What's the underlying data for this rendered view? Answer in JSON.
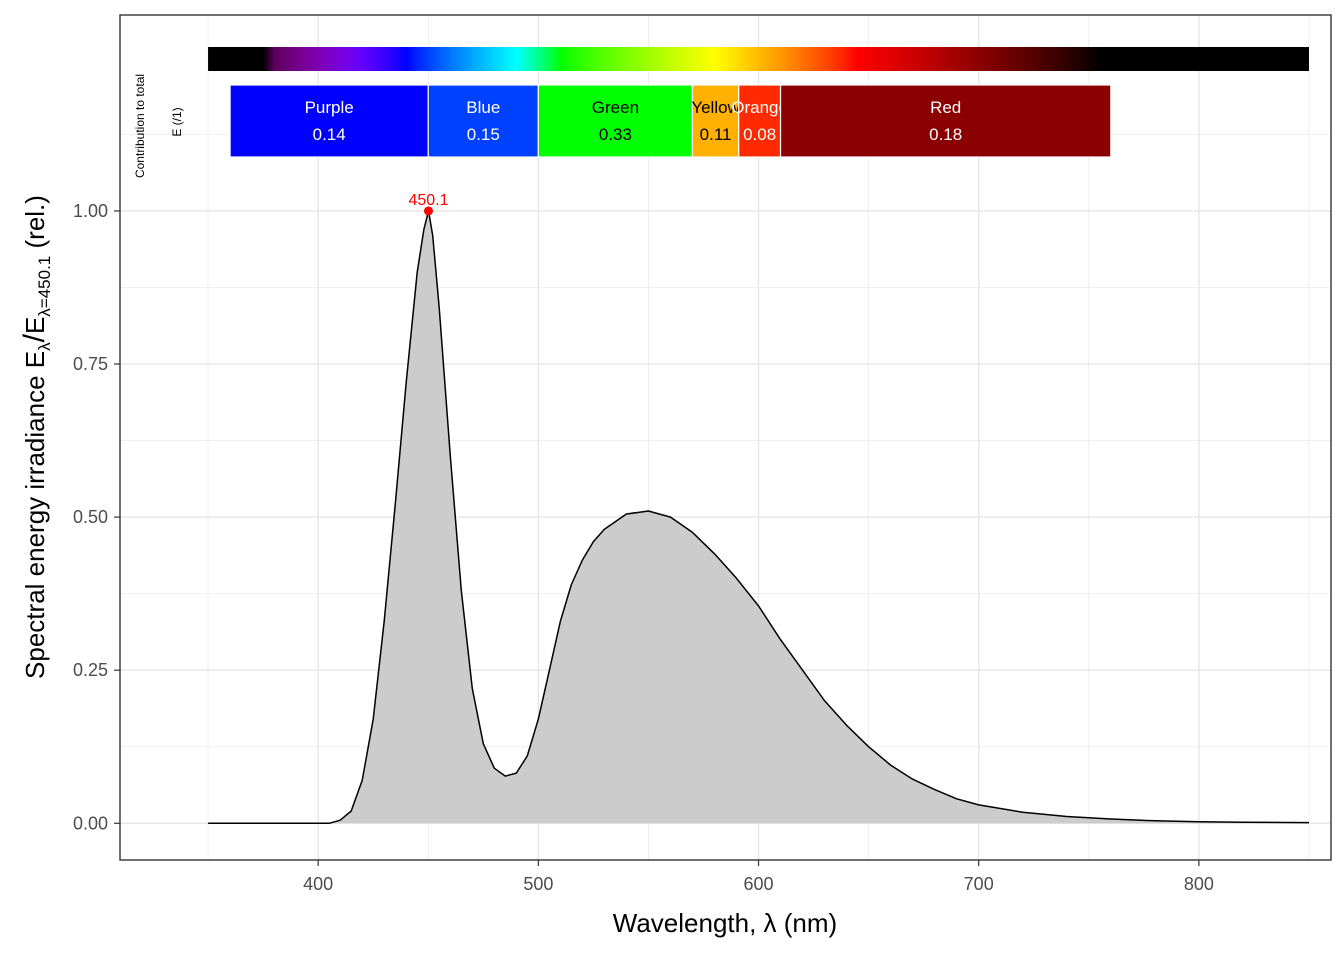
{
  "chart_data": {
    "type": "area",
    "xlabel": "Wavelength, λ (nm)",
    "ylabel": {
      "main": "Spectral  energy  irradiance  E",
      "sub1": "λ",
      "slash": "/",
      "e2": "E",
      "sub2": "λ=450.1",
      "unit": "  (rel.)"
    },
    "xlim": [
      310,
      860
    ],
    "ylim": [
      -0.06,
      1.32
    ],
    "x_ticks": [
      400,
      500,
      600,
      700,
      800
    ],
    "y_ticks": [
      0.0,
      0.25,
      0.5,
      0.75,
      1.0
    ],
    "y_tick_labels": [
      "0.00",
      "0.25",
      "0.50",
      "0.75",
      "1.00"
    ],
    "grid": true,
    "series": [
      {
        "x": [
          350,
          390,
          400,
          405,
          410,
          415,
          420,
          425,
          430,
          435,
          440,
          445,
          448,
          450.1,
          452,
          455,
          460,
          465,
          470,
          475,
          480,
          485,
          490,
          495,
          500,
          505,
          510,
          515,
          520,
          525,
          530,
          540,
          550,
          560,
          570,
          580,
          590,
          600,
          610,
          620,
          630,
          640,
          650,
          660,
          670,
          680,
          690,
          700,
          720,
          740,
          760,
          780,
          800,
          820,
          850
        ],
        "y": [
          0.0,
          0.0,
          0.0,
          0.0,
          0.005,
          0.02,
          0.07,
          0.17,
          0.33,
          0.52,
          0.72,
          0.9,
          0.97,
          1.0,
          0.96,
          0.84,
          0.6,
          0.38,
          0.22,
          0.13,
          0.09,
          0.077,
          0.082,
          0.11,
          0.17,
          0.25,
          0.33,
          0.39,
          0.43,
          0.46,
          0.48,
          0.505,
          0.51,
          0.5,
          0.475,
          0.44,
          0.4,
          0.355,
          0.3,
          0.25,
          0.2,
          0.16,
          0.125,
          0.095,
          0.072,
          0.055,
          0.04,
          0.03,
          0.018,
          0.011,
          0.007,
          0.004,
          0.0025,
          0.0015,
          0.001
        ],
        "fill": "#cccccc",
        "line": "#000000"
      }
    ],
    "peak": {
      "x": 450.1,
      "y": 1.0,
      "label": "450.1",
      "color": "#ff0000"
    },
    "spectrum_bar": {
      "range": [
        350,
        850
      ]
    },
    "bands": [
      {
        "name": "Purple",
        "value": "0.14",
        "start": 360,
        "end": 450,
        "color": "#0000ff",
        "text_color": "#ffffff"
      },
      {
        "name": "Blue",
        "value": "0.15",
        "start": 450,
        "end": 500,
        "color": "#0040ff",
        "text_color": "#ffffff"
      },
      {
        "name": "Green",
        "value": "0.33",
        "start": 500,
        "end": 570,
        "color": "#00ff00",
        "text_color": "#000000"
      },
      {
        "name": "Yellow",
        "value": "0.11",
        "start": 570,
        "end": 591,
        "color": "#ffb000",
        "text_color": "#000000"
      },
      {
        "name": "Orange",
        "value": "0.08",
        "start": 591,
        "end": 610,
        "color": "#ff2a00",
        "text_color": "#ffffff"
      },
      {
        "name": "Red",
        "value": "0.18",
        "start": 610,
        "end": 760,
        "color": "#8b0000",
        "text_color": "#ffffff"
      }
    ],
    "bands_title": {
      "line1": "Contribution  to  total",
      "line2": "E  (/1)"
    }
  }
}
